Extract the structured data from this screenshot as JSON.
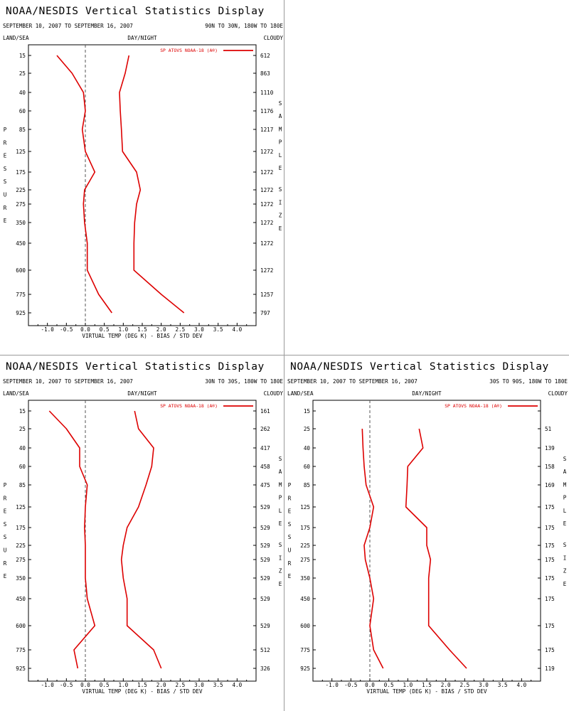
{
  "page": {
    "title": "NOAA/NESDIS Vertical Statistics Display",
    "date_range": "SEPTEMBER 10, 2007 TO SEPTEMBER 16, 2007",
    "land_sea_label": "LAND/SEA",
    "day_night_label": "DAY/NIGHT",
    "cloudy_label": "CLOUDY",
    "left_axis_label": "PRESSURE",
    "right_axis_label": "SAMPLE SIZE",
    "xlabel": "VIRTUAL TEMP (DEG K) - BIAS / STD DEV",
    "legend_label": "SP ATOVS NOAA-18 (A®)",
    "line_color": "#dd0000"
  },
  "chart_data": [
    {
      "type": "line",
      "region": "90N TO 30N, 180W TO 180E",
      "xticks": [
        "-1.0",
        "-0.5",
        "0.0",
        "0.5",
        "1.0",
        "1.5",
        "2.0",
        "2.5",
        "3.0",
        "3.5",
        "4.0"
      ],
      "xlim": [
        -1.5,
        4.5
      ],
      "pressure_levels": [
        15,
        25,
        40,
        60,
        85,
        125,
        175,
        225,
        275,
        350,
        450,
        600,
        775,
        925
      ],
      "sample_size": [
        "612",
        "863",
        "1110",
        "1176",
        "1217",
        "1272",
        "1272",
        "1272",
        "1272",
        "1272",
        "1272",
        "1272",
        "1257",
        "797"
      ],
      "series": [
        {
          "values": [
            -0.75,
            -0.35,
            -0.05,
            0.0,
            -0.08,
            0.0,
            0.25,
            -0.02,
            -0.05,
            -0.02,
            0.05,
            0.05,
            0.35,
            0.7
          ]
        },
        {
          "values": [
            1.15,
            1.05,
            0.9,
            0.92,
            0.95,
            0.98,
            1.35,
            1.45,
            1.35,
            1.3,
            1.28,
            1.28,
            2.0,
            2.6
          ]
        }
      ]
    },
    {
      "type": "line",
      "region": "30N TO 30S, 180W TO 180E",
      "xticks": [
        "-1.0",
        "-0.5",
        "0.0",
        "0.5",
        "1.0",
        "1.5",
        "2.0",
        "2.5",
        "3.0",
        "3.5",
        "4.0"
      ],
      "xlim": [
        -1.5,
        4.5
      ],
      "pressure_levels": [
        15,
        25,
        40,
        60,
        85,
        125,
        175,
        225,
        275,
        350,
        450,
        600,
        775,
        925
      ],
      "sample_size": [
        "161",
        "262",
        "417",
        "458",
        "475",
        "529",
        "529",
        "529",
        "529",
        "529",
        "529",
        "529",
        "512",
        "326"
      ],
      "series": [
        {
          "values": [
            -0.95,
            -0.5,
            -0.15,
            -0.15,
            0.05,
            0.0,
            -0.02,
            0.0,
            0.0,
            0.0,
            0.05,
            0.25,
            -0.3,
            -0.2
          ]
        },
        {
          "values": [
            1.3,
            1.4,
            1.8,
            1.75,
            1.6,
            1.4,
            1.1,
            1.0,
            0.95,
            1.0,
            1.1,
            1.1,
            1.8,
            2.0
          ]
        }
      ]
    },
    {
      "type": "line",
      "region": "30S TO 90S, 180W TO 180E",
      "xticks": [
        "-1.0",
        "-0.5",
        "0.0",
        "0.5",
        "1.0",
        "1.5",
        "2.0",
        "2.5",
        "3.0",
        "3.5",
        "4.0"
      ],
      "xlim": [
        -1.5,
        4.5
      ],
      "pressure_levels": [
        15,
        25,
        40,
        60,
        85,
        125,
        175,
        225,
        275,
        350,
        450,
        600,
        775,
        925
      ],
      "sample_size": [
        "",
        "51",
        "139",
        "158",
        "169",
        "175",
        "175",
        "175",
        "175",
        "175",
        "175",
        "175",
        "175",
        "119"
      ],
      "series": [
        {
          "values": [
            null,
            -0.2,
            -0.18,
            -0.15,
            -0.1,
            0.1,
            0.0,
            -0.15,
            -0.12,
            0.0,
            0.1,
            0.0,
            0.1,
            0.35
          ]
        },
        {
          "values": [
            null,
            1.3,
            1.4,
            1.0,
            0.98,
            0.95,
            1.5,
            1.5,
            1.6,
            1.55,
            1.55,
            1.55,
            2.1,
            2.55
          ]
        }
      ]
    }
  ]
}
